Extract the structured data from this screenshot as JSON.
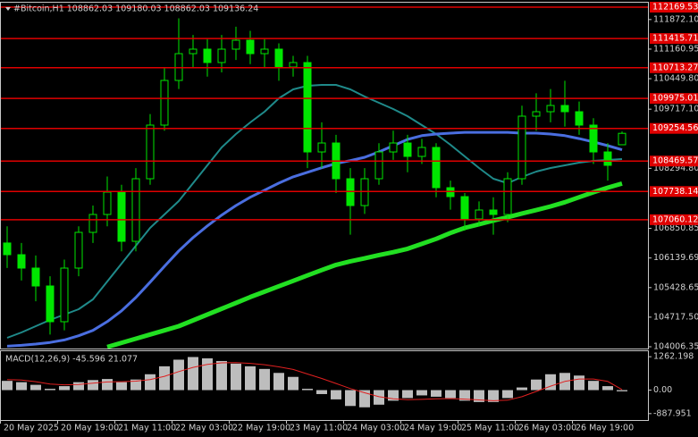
{
  "chart_data": [
    {
      "type": "candlestick",
      "title": "#Bitcoin,H1  108862.03 109180.03 108862.03 109136.24",
      "categories": [
        "20 May 2025",
        null,
        null,
        null,
        "20 May 19:00",
        null,
        null,
        null,
        "21 May 11:00",
        null,
        null,
        null,
        "22 May 03:00",
        null,
        null,
        null,
        "22 May 19:00",
        null,
        null,
        null,
        "23 May 11:00",
        null,
        null,
        null,
        "24 May 03:00",
        null,
        null,
        null,
        "24 May 19:00",
        null,
        null,
        null,
        "25 May 11:00",
        null,
        null,
        null,
        "26 May 03:00",
        null,
        null,
        null,
        "26 May 19:00",
        null,
        null,
        null
      ],
      "open": [
        106500,
        106219,
        105897,
        105467,
        104608,
        105897,
        106756,
        107186,
        107723,
        106541,
        108045,
        109334,
        110408,
        111052,
        111160,
        110838,
        111160,
        111375,
        111052,
        111160,
        110730,
        110838,
        108689,
        108904,
        108045,
        107400,
        108045,
        108689,
        108904,
        108582,
        108797,
        107830,
        107615,
        107078,
        107293,
        107186,
        108045,
        109549,
        109656,
        109806,
        109656,
        109334,
        108689,
        108862.03
      ],
      "high": [
        106900,
        106500,
        106200,
        105700,
        106100,
        106900,
        107400,
        108100,
        107900,
        108300,
        109600,
        110700,
        111900,
        111500,
        111400,
        111500,
        111700,
        111600,
        111400,
        111300,
        111000,
        111000,
        109400,
        109100,
        108300,
        108300,
        108900,
        109200,
        109100,
        109000,
        108900,
        108000,
        107700,
        107500,
        107600,
        108200,
        109800,
        110100,
        110200,
        110400,
        109900,
        109500,
        108900,
        109180.03
      ],
      "low": [
        105900,
        105600,
        105100,
        104300,
        104400,
        105700,
        106500,
        106900,
        106300,
        106300,
        107900,
        109200,
        110200,
        110700,
        110500,
        110600,
        110900,
        110800,
        110700,
        110400,
        110500,
        108300,
        108300,
        107700,
        106700,
        107200,
        107900,
        108500,
        108200,
        108400,
        107600,
        107300,
        106800,
        106900,
        106700,
        107000,
        107900,
        109200,
        109400,
        109300,
        109100,
        108400,
        108000,
        108862.03
      ],
      "close": [
        106219,
        105897,
        105467,
        104608,
        105897,
        106756,
        107186,
        107723,
        106541,
        108045,
        109334,
        110408,
        111052,
        111160,
        110838,
        111160,
        111375,
        111052,
        111160,
        110730,
        110838,
        108689,
        108904,
        108045,
        107400,
        108045,
        108689,
        108904,
        108582,
        108797,
        107830,
        107615,
        107078,
        107293,
        107186,
        108045,
        109549,
        109656,
        109806,
        109656,
        109334,
        108689,
        108367,
        109136.24
      ],
      "color": "#00e600",
      "series": [
        {
          "color": "#1f8a8a",
          "width": 2,
          "values": [
            104221,
            104350,
            104500,
            104651,
            104780,
            104909,
            105145,
            105575,
            106005,
            106434,
            106864,
            107186,
            107508,
            107938,
            108367,
            108797,
            109119,
            109398,
            109656,
            109978,
            110193,
            110279,
            110301,
            110301,
            110193,
            110021,
            109871,
            109720,
            109549,
            109334,
            109119,
            108861,
            108582,
            108303,
            108045,
            107938,
            108088,
            108217,
            108303,
            108367,
            108432,
            108475,
            108496,
            108518
          ]
        },
        {
          "color": "#4a6ee0",
          "width": 3,
          "values": [
            104020,
            104040,
            104070,
            104110,
            104170,
            104270,
            104400,
            104610,
            104870,
            105190,
            105560,
            105940,
            106310,
            106630,
            106910,
            107170,
            107400,
            107600,
            107770,
            107940,
            108090,
            108200,
            108310,
            108410,
            108480,
            108560,
            108690,
            108840,
            108990,
            109080,
            109120,
            109140,
            109160,
            109160,
            109160,
            109160,
            109140,
            109140,
            109120,
            109080,
            109010,
            108930,
            108840,
            108740
          ]
        },
        {
          "color": "#22e022",
          "width": 5,
          "values": [
            null,
            null,
            null,
            null,
            null,
            null,
            null,
            104000,
            104100,
            104200,
            104300,
            104400,
            104500,
            104640,
            104780,
            104920,
            105060,
            105200,
            105330,
            105460,
            105590,
            105720,
            105850,
            105975,
            106060,
            106130,
            106210,
            106280,
            106360,
            106480,
            106600,
            106740,
            106864,
            106950,
            107040,
            107120,
            107210,
            107290,
            107380,
            107480,
            107600,
            107720,
            107830,
            107930
          ]
        }
      ],
      "levels": [
        112169.53,
        111415.71,
        110713.27,
        109975.01,
        109254.56,
        108469.57,
        107738.14,
        107060.12
      ],
      "level_color": "#e00000",
      "ylim": [
        104006.35,
        112169.53
      ],
      "yticks": [
        {
          "value": 111872.1,
          "label": "111872.10"
        },
        111160.95,
        {
          "value": 110449.8,
          "label": "110449.80"
        },
        {
          "value": 109717.1,
          "label": "109717.10"
        },
        {
          "value": 108294.8,
          "label": "108294.80"
        },
        106850.85,
        106139.69,
        105428.65,
        {
          "value": 104717.5,
          "label": "104717.50"
        },
        104006.35
      ]
    },
    {
      "type": "bar",
      "title": "MACD(12,26,9) -45.596 21.077",
      "series": [
        {
          "kind": "bar",
          "color": "#bdbdbd",
          "values": [
            350,
            300,
            200,
            50,
            150,
            300,
            380,
            420,
            300,
            400,
            600,
            900,
            1150,
            1250,
            1200,
            1100,
            1000,
            900,
            800,
            650,
            500,
            50,
            -150,
            -350,
            -600,
            -650,
            -550,
            -400,
            -300,
            -200,
            -250,
            -300,
            -400,
            -450,
            -450,
            -300,
            100,
            400,
            600,
            650,
            550,
            350,
            150,
            -45.596
          ]
        },
        {
          "kind": "line",
          "color": "#e02020",
          "values": [
            400,
            380,
            320,
            230,
            200,
            210,
            260,
            310,
            320,
            340,
            400,
            520,
            700,
            860,
            970,
            1030,
            1040,
            1010,
            960,
            880,
            780,
            610,
            440,
            250,
            60,
            -100,
            -250,
            -330,
            -360,
            -350,
            -330,
            -320,
            -340,
            -370,
            -400,
            -380,
            -250,
            -50,
            150,
            330,
            420,
            420,
            330,
            21.077
          ]
        }
      ],
      "ylim": [
        -1130,
        1470
      ],
      "yticks": [
        1262.198,
        {
          "value": 0,
          "label": "0.00"
        },
        -887.951
      ]
    }
  ]
}
